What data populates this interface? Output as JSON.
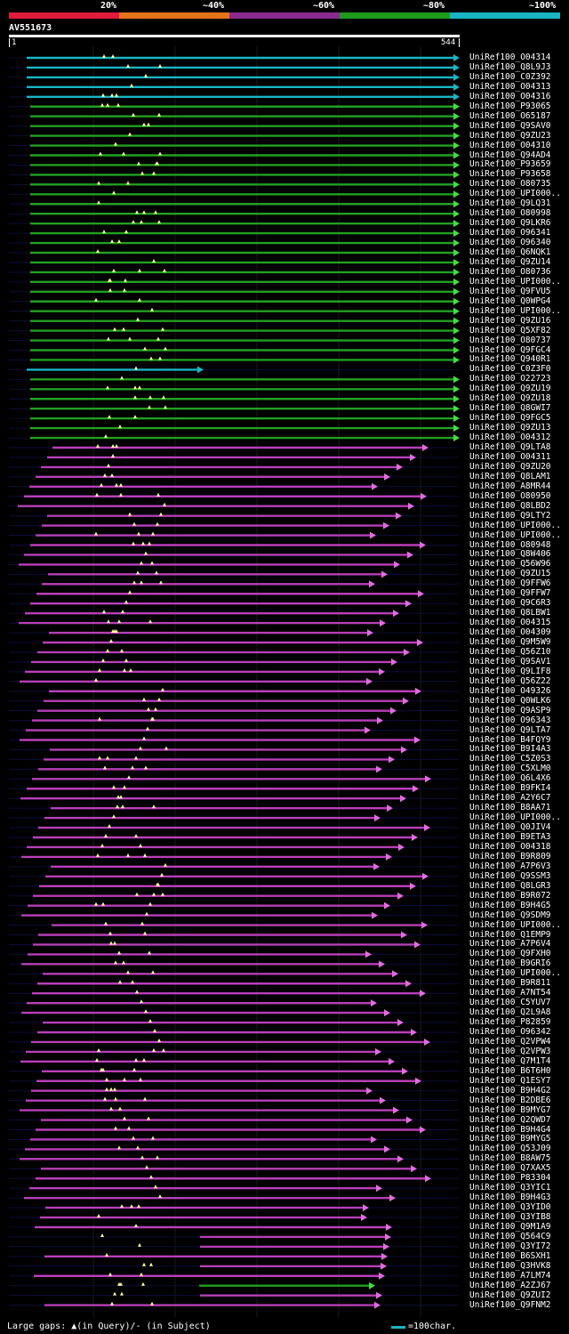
{
  "scale": {
    "labels": [
      "20%",
      "~40%",
      "~60%",
      "~80%",
      "~100%"
    ],
    "colors": [
      "#e01b3c",
      "#e5731c",
      "#8a2a90",
      "#1c9a1c",
      "#19b5c4"
    ]
  },
  "query": {
    "id": "AV551673",
    "start": "1",
    "end": "544"
  },
  "colors": {
    "cyan": "#19b5c4",
    "green": "#22a022",
    "magenta": "#b83fb8",
    "arrow": "#e06ce0",
    "gap": "#ffff99",
    "grid": "#1a1a1a"
  },
  "hits": [
    "UniRef100_O04314",
    "UniRef100_Q8L9J3",
    "UniRef100_C0Z392",
    "UniRef100_O04313",
    "UniRef100_O04316",
    "UniRef100_P93065",
    "UniRef100_O65187",
    "UniRef100_Q9SAV0",
    "UniRef100_Q9ZU23",
    "UniRef100_O04310",
    "UniRef100_Q94AD4",
    "UniRef100_P93659",
    "UniRef100_P93658",
    "UniRef100_O80735",
    "UniRef100_UPI000..",
    "UniRef100_Q9LQ31",
    "UniRef100_O80998",
    "UniRef100_Q9LKR6",
    "UniRef100_O96341",
    "UniRef100_O96340",
    "UniRef100_Q6NQK1",
    "UniRef100_Q9ZU14",
    "UniRef100_O80736",
    "UniRef100_UPI000..",
    "UniRef100_Q9FVU5",
    "UniRef100_Q0WPG4",
    "UniRef100_UPI000..",
    "UniRef100_Q9ZU16",
    "UniRef100_Q5XF82",
    "UniRef100_O80737",
    "UniRef100_Q9FGC4",
    "UniRef100_Q940R1",
    "UniRef100_C0Z3F0",
    "UniRef100_O22723",
    "UniRef100_Q9ZU19",
    "UniRef100_Q9ZU18",
    "UniRef100_Q8GWI7",
    "UniRef100_Q9FGC5",
    "UniRef100_Q9ZU13",
    "UniRef100_O04312",
    "UniRef100_Q9LTA8",
    "UniRef100_O04311",
    "UniRef100_Q9ZU20",
    "UniRef100_Q8LAM1",
    "UniRef100_A8MR44",
    "UniRef100_O80950",
    "UniRef100_Q8LBD2",
    "UniRef100_Q9LTY2",
    "UniRef100_UPI000..",
    "UniRef100_UPI000..",
    "UniRef100_O80948",
    "UniRef100_Q8W406",
    "UniRef100_Q56W96",
    "UniRef100_Q9ZU15",
    "UniRef100_Q9FFW6",
    "UniRef100_Q9FFW7",
    "UniRef100_Q9C6R3",
    "UniRef100_Q8LBW1",
    "UniRef100_O04315",
    "UniRef100_O04309",
    "UniRef100_Q9M5W9",
    "UniRef100_Q56Z10",
    "UniRef100_Q9SAV1",
    "UniRef100_Q9LIF8",
    "UniRef100_Q56Z22",
    "UniRef100_O49326",
    "UniRef100_Q0WLK6",
    "UniRef100_Q9ASP9",
    "UniRef100_O96343",
    "UniRef100_Q9LTA7",
    "UniRef100_B4FQY9",
    "UniRef100_B9I4A3",
    "UniRef100_C5Z0S3",
    "UniRef100_C5XLM0",
    "UniRef100_Q6L4X6",
    "UniRef100_B9FKI4",
    "UniRef100_A2Y6C7",
    "UniRef100_B8AA71",
    "UniRef100_UPI000..",
    "UniRef100_Q0JIV4",
    "UniRef100_B9ETA3",
    "UniRef100_O04318",
    "UniRef100_B9R809",
    "UniRef100_A7P6V3",
    "UniRef100_Q9SSM3",
    "UniRef100_Q8LGR3",
    "UniRef100_B9R072",
    "UniRef100_B9H4G5",
    "UniRef100_Q9SDM9",
    "UniRef100_UPI000..",
    "UniRef100_Q1EMP9",
    "UniRef100_A7P6V4",
    "UniRef100_Q9FXH0",
    "UniRef100_B9GRI6",
    "UniRef100_UPI000..",
    "UniRef100_B9R811",
    "UniRef100_A7NT54",
    "UniRef100_C5YUV7",
    "UniRef100_Q2L9A8",
    "UniRef100_P82859",
    "UniRef100_O96342",
    "UniRef100_Q2VPW4",
    "UniRef100_Q2VPW3",
    "UniRef100_Q7M1T4",
    "UniRef100_B6T6H0",
    "UniRef100_Q1ESY7",
    "UniRef100_B9H4G2",
    "UniRef100_B2DBE6",
    "UniRef100_B9MYG7",
    "UniRef100_Q2QWD7",
    "UniRef100_B9H4G4",
    "UniRef100_B9MYG5",
    "UniRef100_Q53J09",
    "UniRef100_B8AW75",
    "UniRef100_Q7XAX5",
    "UniRef100_P83304",
    "UniRef100_Q3YIC1",
    "UniRef100_B9H4G3",
    "UniRef100_Q3YID0",
    "UniRef100_Q3YIB8",
    "UniRef100_Q9M1A9",
    "UniRef100_Q564C9",
    "UniRef100_Q3YI72",
    "UniRef100_B6SXH1",
    "UniRef100_Q3HVK8",
    "UniRef100_A7LM74",
    "UniRef100_A2ZJ67",
    "UniRef100_Q9ZUI2",
    "UniRef100_Q9FNM2"
  ],
  "footer": {
    "gaps_text": "Large gaps: ▲(in Query)/‐ (in Subject)",
    "legend_text": "=100char."
  }
}
